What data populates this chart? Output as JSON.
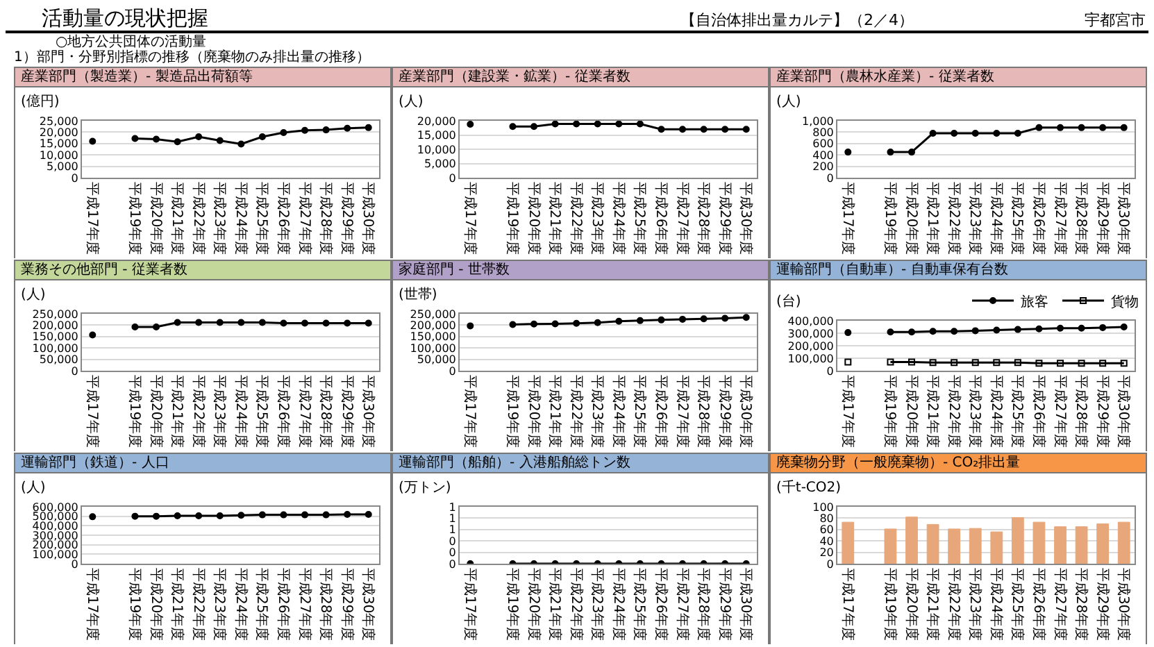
{
  "chart_data": [
    {
      "type": "other",
      "title": "活動量の現状把握",
      "annotations": [
        "【自治体排出量カルテ】（2／4）",
        "宇都宮市",
        "○地方公共団体の活動量",
        "1）部門・分野別指標の推移（廃棄物のみ排出量の推移）"
      ]
    },
    {
      "type": "line",
      "title": "産業部門（製造業）- 製造品出荷額等",
      "ylabel": "(億円)",
      "categories": [
        "平成17年度",
        null,
        "平成19年度",
        "平成20年度",
        "平成21年度",
        "平成22年度",
        "平成23年度",
        "平成24年度",
        "平成25年度",
        "平成26年度",
        "平成27年度",
        "平成28年度",
        "平成29年度",
        "平成30年度"
      ],
      "color": "#000000",
      "values": [
        16000,
        null,
        17200,
        16900,
        15800,
        18000,
        16300,
        14800,
        18000,
        19800,
        20800,
        21000,
        21700,
        22000
      ],
      "ylim": [
        0,
        25000
      ],
      "yticks": [
        0,
        {
          "value": 5000,
          "label": "5,000"
        },
        {
          "value": 10000,
          "label": "10,000"
        },
        {
          "value": 15000,
          "label": "15,000"
        },
        {
          "value": 20000,
          "label": "20,000"
        },
        {
          "value": 25000,
          "label": "25,000"
        }
      ],
      "grid": "y",
      "marker": "circle"
    },
    {
      "type": "line",
      "title": "産業部門（建設業・鉱業）- 従業者数",
      "ylabel": "(人)",
      "categories": [
        "平成17年度",
        null,
        "平成19年度",
        "平成20年度",
        "平成21年度",
        "平成22年度",
        "平成23年度",
        "平成24年度",
        "平成25年度",
        "平成26年度",
        "平成27年度",
        "平成28年度",
        "平成29年度",
        "平成30年度"
      ],
      "color": "#000000",
      "values": [
        18800,
        null,
        18000,
        18000,
        18900,
        18900,
        18900,
        18900,
        18900,
        17000,
        17000,
        17000,
        17000,
        17000
      ],
      "ylim": [
        0,
        20000
      ],
      "yticks": [
        0,
        {
          "value": 5000,
          "label": "5,000"
        },
        {
          "value": 10000,
          "label": "10,000"
        },
        {
          "value": 15000,
          "label": "15,000"
        },
        {
          "value": 20000,
          "label": "20,000"
        }
      ],
      "grid": "y",
      "marker": "circle"
    },
    {
      "type": "line",
      "title": "産業部門（農林水産業）- 従業者数",
      "ylabel": "(人)",
      "categories": [
        "平成17年度",
        null,
        "平成19年度",
        "平成20年度",
        "平成21年度",
        "平成22年度",
        "平成23年度",
        "平成24年度",
        "平成25年度",
        "平成26年度",
        "平成27年度",
        "平成28年度",
        "平成29年度",
        "平成30年度"
      ],
      "color": "#000000",
      "values": [
        450,
        null,
        450,
        450,
        780,
        780,
        780,
        780,
        780,
        880,
        880,
        880,
        880,
        880
      ],
      "ylim": [
        0,
        1000
      ],
      "yticks": [
        0,
        200,
        400,
        600,
        800,
        {
          "value": 1000,
          "label": "1,000"
        }
      ],
      "grid": "y",
      "marker": "circle"
    },
    {
      "type": "line",
      "title": "業務その他部門 - 従業者数",
      "ylabel": "(人)",
      "categories": [
        "平成17年度",
        null,
        "平成19年度",
        "平成20年度",
        "平成21年度",
        "平成22年度",
        "平成23年度",
        "平成24年度",
        "平成25年度",
        "平成26年度",
        "平成27年度",
        "平成28年度",
        "平成29年度",
        "平成30年度"
      ],
      "color": "#000000",
      "values": [
        157000,
        null,
        192000,
        192000,
        212000,
        212000,
        212000,
        212000,
        212000,
        209000,
        209000,
        209000,
        209000,
        209000
      ],
      "ylim": [
        0,
        250000
      ],
      "yticks": [
        0,
        {
          "value": 50000,
          "label": "50,000"
        },
        {
          "value": 100000,
          "label": "100,000"
        },
        {
          "value": 150000,
          "label": "150,000"
        },
        {
          "value": 200000,
          "label": "200,000"
        },
        {
          "value": 250000,
          "label": "250,000"
        }
      ],
      "grid": "y",
      "marker": "circle"
    },
    {
      "type": "line",
      "title": "家庭部門 - 世帯数",
      "ylabel": "(世帯)",
      "categories": [
        "平成17年度",
        null,
        "平成19年度",
        "平成20年度",
        "平成21年度",
        "平成22年度",
        "平成23年度",
        "平成24年度",
        "平成25年度",
        "平成26年度",
        "平成27年度",
        "平成28年度",
        "平成29年度",
        "平成30年度"
      ],
      "color": "#000000",
      "values": [
        197000,
        null,
        203000,
        205000,
        206000,
        208000,
        211000,
        217000,
        220000,
        223000,
        226000,
        228000,
        230000,
        234000
      ],
      "ylim": [
        0,
        250000
      ],
      "yticks": [
        0,
        {
          "value": 50000,
          "label": "50,000"
        },
        {
          "value": 100000,
          "label": "100,000"
        },
        {
          "value": 150000,
          "label": "150,000"
        },
        {
          "value": 200000,
          "label": "200,000"
        },
        {
          "value": 250000,
          "label": "250,000"
        }
      ],
      "grid": "y",
      "marker": "circle"
    },
    {
      "type": "line",
      "title": "運輸部門（自動車）- 自動車保有台数",
      "ylabel": "(台)",
      "categories": [
        "平成17年度",
        null,
        "平成19年度",
        "平成20年度",
        "平成21年度",
        "平成22年度",
        "平成23年度",
        "平成24年度",
        "平成25年度",
        "平成26年度",
        "平成27年度",
        "平成28年度",
        "平成29年度",
        "平成30年度"
      ],
      "series": [
        {
          "name": "旅客",
          "color": "#000000",
          "marker": "circle",
          "values": [
            305000,
            null,
            310000,
            310000,
            315000,
            315000,
            320000,
            325000,
            330000,
            335000,
            340000,
            340000,
            345000,
            350000
          ]
        },
        {
          "name": "貨物",
          "color": "#000000",
          "marker": "square",
          "values": [
            70000,
            null,
            70000,
            70000,
            65000,
            65000,
            65000,
            65000,
            65000,
            60000,
            60000,
            60000,
            60000,
            60000
          ]
        }
      ],
      "ylim": [
        0,
        400000
      ],
      "yticks": [
        0,
        {
          "value": 100000,
          "label": "100,000"
        },
        {
          "value": 200000,
          "label": "200,000"
        },
        {
          "value": 300000,
          "label": "300,000"
        },
        {
          "value": 400000,
          "label": "400,000"
        }
      ],
      "grid": "y",
      "legend": "top"
    },
    {
      "type": "line",
      "title": "運輸部門（鉄道）- 人口",
      "ylabel": "(人)",
      "categories": [
        "平成17年度",
        null,
        "平成19年度",
        "平成20年度",
        "平成21年度",
        "平成22年度",
        "平成23年度",
        "平成24年度",
        "平成25年度",
        "平成26年度",
        "平成27年度",
        "平成28年度",
        "平成29年度",
        "平成30年度"
      ],
      "color": "#000000",
      "values": [
        495000,
        null,
        500000,
        500000,
        505000,
        505000,
        505000,
        510000,
        515000,
        515000,
        515000,
        515000,
        520000,
        520000
      ],
      "ylim": [
        0,
        600000
      ],
      "yticks": [
        0,
        {
          "value": 100000,
          "label": "100,000"
        },
        {
          "value": 200000,
          "label": "200,000"
        },
        {
          "value": 300000,
          "label": "300,000"
        },
        {
          "value": 400000,
          "label": "400,000"
        },
        {
          "value": 500000,
          "label": "500,000"
        },
        {
          "value": 600000,
          "label": "600,000"
        }
      ],
      "grid": "y",
      "marker": "circle"
    },
    {
      "type": "line",
      "title": "運輸部門（船舶）- 入港船舶総トン数",
      "ylabel": "(万トン)",
      "categories": [
        "平成17年度",
        null,
        "平成19年度",
        "平成20年度",
        "平成21年度",
        "平成22年度",
        "平成23年度",
        "平成24年度",
        "平成25年度",
        "平成26年度",
        "平成27年度",
        "平成28年度",
        "平成29年度",
        "平成30年度"
      ],
      "color": "#000000",
      "values": [
        0,
        null,
        0,
        0,
        0,
        0,
        0,
        0,
        0,
        0,
        0,
        0,
        0,
        0
      ],
      "ylim": [
        0,
        1
      ],
      "yticks": [
        0,
        {
          "value": 0.2,
          "label": "0"
        },
        {
          "value": 0.4,
          "label": "0"
        },
        {
          "value": 0.6,
          "label": "1"
        },
        {
          "value": 0.8,
          "label": "1"
        },
        1
      ],
      "grid": "y",
      "marker": "circle"
    },
    {
      "type": "bar",
      "title": "廃棄物分野（一般廃棄物）- CO₂排出量",
      "ylabel": "(千t-CO2)",
      "categories": [
        "平成17年度",
        null,
        "平成19年度",
        "平成20年度",
        "平成21年度",
        "平成22年度",
        "平成23年度",
        "平成24年度",
        "平成25年度",
        "平成26年度",
        "平成27年度",
        "平成28年度",
        "平成29年度",
        "平成30年度"
      ],
      "color": "#e8a77a",
      "values": [
        73,
        null,
        61,
        82,
        69,
        61,
        62,
        56,
        81,
        73,
        65,
        65,
        70,
        73
      ],
      "ylim": [
        0,
        100
      ],
      "yticks": [
        0,
        20,
        40,
        60,
        80,
        100
      ],
      "grid": "y"
    }
  ]
}
